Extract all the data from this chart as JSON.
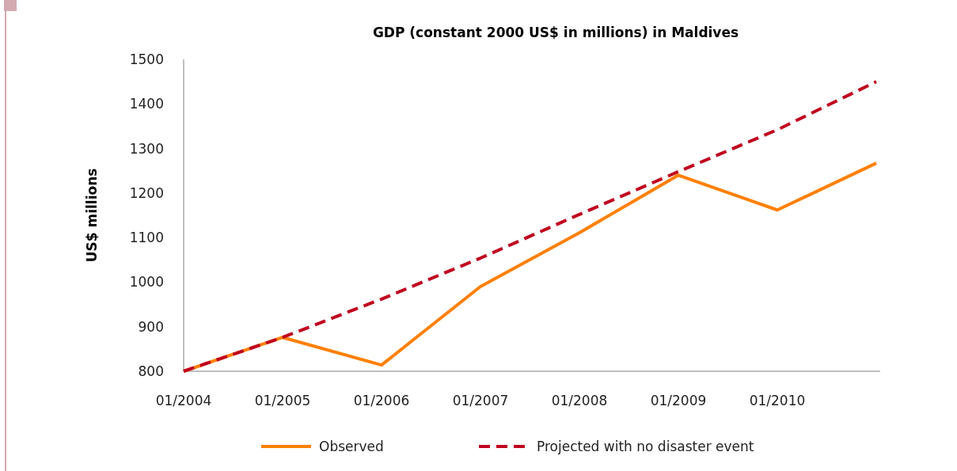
{
  "chart_data": {
    "type": "line",
    "title": "GDP (constant 2000 US$ in millions) in Maldives",
    "ylabel": "US$ millions",
    "categories": [
      "01/2004",
      "01/2005",
      "01/2006",
      "01/2007",
      "01/2008",
      "01/2009",
      "01/2010",
      null
    ],
    "series": [
      {
        "name": "Observed",
        "color": "#ff8000",
        "line_style": "solid",
        "values": [
          800,
          876,
          814,
          990,
          1111,
          1240,
          1162,
          1267
        ]
      },
      {
        "name": "Projected with no disaster event",
        "color": "#c0001e",
        "line_style": "dashed",
        "values": [
          800,
          876,
          962,
          1054,
          1152,
          1248,
          1342,
          1450
        ]
      }
    ],
    "ylim": [
      800,
      1500
    ],
    "yticks": [
      800,
      900,
      1000,
      1100,
      1200,
      1300,
      1400,
      1500
    ],
    "grid": false,
    "legend": "bottom",
    "marker": "none"
  }
}
